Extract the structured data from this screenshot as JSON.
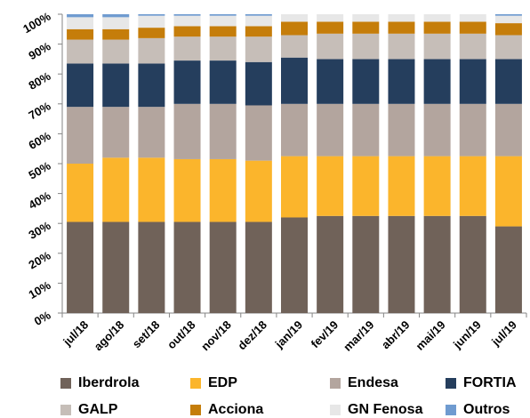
{
  "chart_data": {
    "type": "bar",
    "stacked": true,
    "categories": [
      "jul/18",
      "ago/18",
      "set/18",
      "out/18",
      "nov/18",
      "dez/18",
      "jan/19",
      "fev/19",
      "mar/19",
      "abr/19",
      "mai/19",
      "jun/19",
      "jul/19"
    ],
    "ylim": [
      0,
      100
    ],
    "y_ticks": [
      "0%",
      "10%",
      "20%",
      "30%",
      "40%",
      "50%",
      "60%",
      "70%",
      "80%",
      "90%",
      "100%"
    ],
    "grid": false,
    "legend_position": "bottom",
    "series": [
      {
        "name": "Iberdrola",
        "color": "#706259",
        "values": [
          30.5,
          30.5,
          30.5,
          30.5,
          30.5,
          30.5,
          32,
          32.5,
          32.5,
          32.5,
          32.5,
          32.5,
          29
        ]
      },
      {
        "name": "EDP",
        "color": "#FBB52C",
        "values": [
          19.5,
          21.5,
          21.5,
          21,
          21,
          20.5,
          20.5,
          20,
          20,
          20,
          20,
          20,
          23.5
        ]
      },
      {
        "name": "Endesa",
        "color": "#B3A59E",
        "values": [
          19,
          17,
          17,
          18.5,
          18.5,
          18.5,
          17.5,
          17.5,
          17.5,
          17.5,
          17.5,
          17.5,
          17.5
        ]
      },
      {
        "name": "FORTIA",
        "color": "#253E5D",
        "values": [
          14.5,
          14.5,
          14.5,
          14.5,
          14.5,
          14.5,
          15.5,
          15,
          15,
          15,
          15,
          15,
          15
        ]
      },
      {
        "name": "GALP",
        "color": "#C6BEB8",
        "values": [
          8,
          8,
          8.5,
          8,
          8,
          8.5,
          7.5,
          8.5,
          8.5,
          8.5,
          8.5,
          8.5,
          8
        ]
      },
      {
        "name": "Acciona",
        "color": "#C57D0A",
        "values": [
          3.5,
          3.5,
          3.5,
          3.5,
          3.5,
          3.5,
          4.5,
          4,
          4,
          4,
          4,
          4,
          4
        ]
      },
      {
        "name": "GN Fenosa",
        "color": "#E7E7E7",
        "values": [
          4,
          4,
          4,
          3.5,
          3.5,
          3.5,
          2.5,
          2.5,
          2.5,
          2.5,
          2.5,
          2.5,
          2.5
        ]
      },
      {
        "name": "Outros",
        "color": "#6F9BD0",
        "values": [
          1,
          1,
          0.5,
          0.5,
          0.5,
          0.5,
          0.5,
          0.5,
          0.5,
          0.5,
          0.5,
          0.5,
          0.5
        ]
      }
    ]
  }
}
